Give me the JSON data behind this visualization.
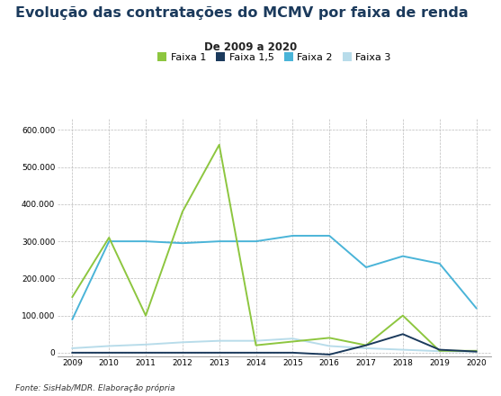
{
  "title": "Evolução das contratações do MCMV por faixa de renda",
  "subtitle": "De 2009 a 2020",
  "footnote": "Fonte: SisHab/MDR. Elaboração própria",
  "years": [
    2009,
    2010,
    2011,
    2012,
    2013,
    2014,
    2015,
    2016,
    2017,
    2018,
    2019,
    2020
  ],
  "faixa1": [
    150000,
    310000,
    100000,
    380000,
    560000,
    20000,
    30000,
    40000,
    20000,
    100000,
    5000,
    5000
  ],
  "faixa15": [
    0,
    0,
    0,
    0,
    0,
    0,
    0,
    -5000,
    20000,
    50000,
    8000,
    3000
  ],
  "faixa2": [
    90000,
    300000,
    300000,
    295000,
    300000,
    300000,
    315000,
    315000,
    230000,
    260000,
    240000,
    120000
  ],
  "faixa3": [
    12000,
    18000,
    22000,
    28000,
    32000,
    32000,
    38000,
    18000,
    12000,
    8000,
    4000,
    3000
  ],
  "color_faixa1": "#8dc63f",
  "color_faixa15": "#1b3a5c",
  "color_faixa2": "#4ab4d8",
  "color_faixa3": "#b8dcea",
  "ylim_min": -10000,
  "ylim_max": 630000,
  "yticks": [
    0,
    100000,
    200000,
    300000,
    400000,
    500000,
    600000
  ],
  "background_color": "#ffffff",
  "title_color": "#1b3a5c",
  "title_fontsize": 11.5,
  "subtitle_fontsize": 8.5,
  "footnote_fontsize": 6.5,
  "tick_fontsize": 6.5
}
